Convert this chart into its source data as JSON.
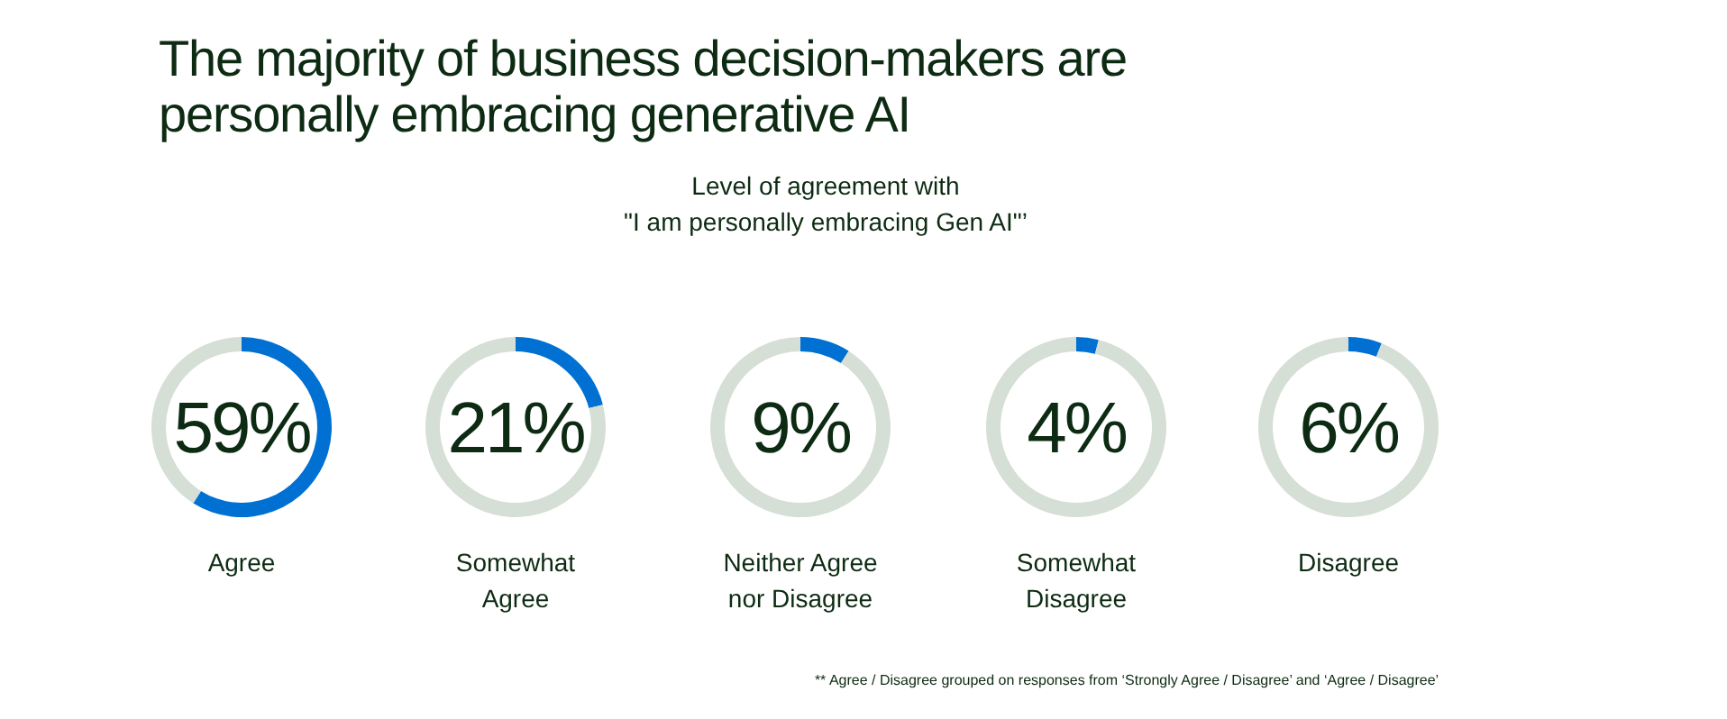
{
  "chart_data": [
    {
      "type": "other",
      "title": "The majority of business decision-makers are\npersonally embracing generative AI",
      "subtitle": "Level of agreement with\n\"I am personally embracing Gen AI\"’",
      "annotations": [
        "** Agree / Disagree grouped on responses from ‘Strongly Agree / Disagree’ and ‘Agree / Disagree’"
      ]
    },
    {
      "type": "donut",
      "title": "Agree",
      "categories": [
        null,
        null
      ],
      "values": [
        59,
        41
      ],
      "colors": [
        "#0070d2",
        "#d5dfd6"
      ],
      "annotations": [
        "59%"
      ]
    },
    {
      "type": "donut",
      "title": "Somewhat Agree",
      "categories": [
        null,
        null
      ],
      "values": [
        21,
        79
      ],
      "colors": [
        "#0070d2",
        "#d5dfd6"
      ],
      "annotations": [
        "21%"
      ]
    },
    {
      "type": "donut",
      "title": "Neither Agree nor Disagree",
      "categories": [
        null,
        null
      ],
      "values": [
        9,
        91
      ],
      "colors": [
        "#0070d2",
        "#d5dfd6"
      ],
      "annotations": [
        "9%"
      ]
    },
    {
      "type": "donut",
      "title": "Somewhat Disagree",
      "categories": [
        null,
        null
      ],
      "values": [
        4,
        96
      ],
      "colors": [
        "#0070d2",
        "#d5dfd6"
      ],
      "annotations": [
        "4%"
      ]
    },
    {
      "type": "donut",
      "title": "Disagree",
      "categories": [
        null,
        null
      ],
      "values": [
        6,
        94
      ],
      "colors": [
        "#0070d2",
        "#d5dfd6"
      ],
      "annotations": [
        "6%"
      ]
    }
  ]
}
